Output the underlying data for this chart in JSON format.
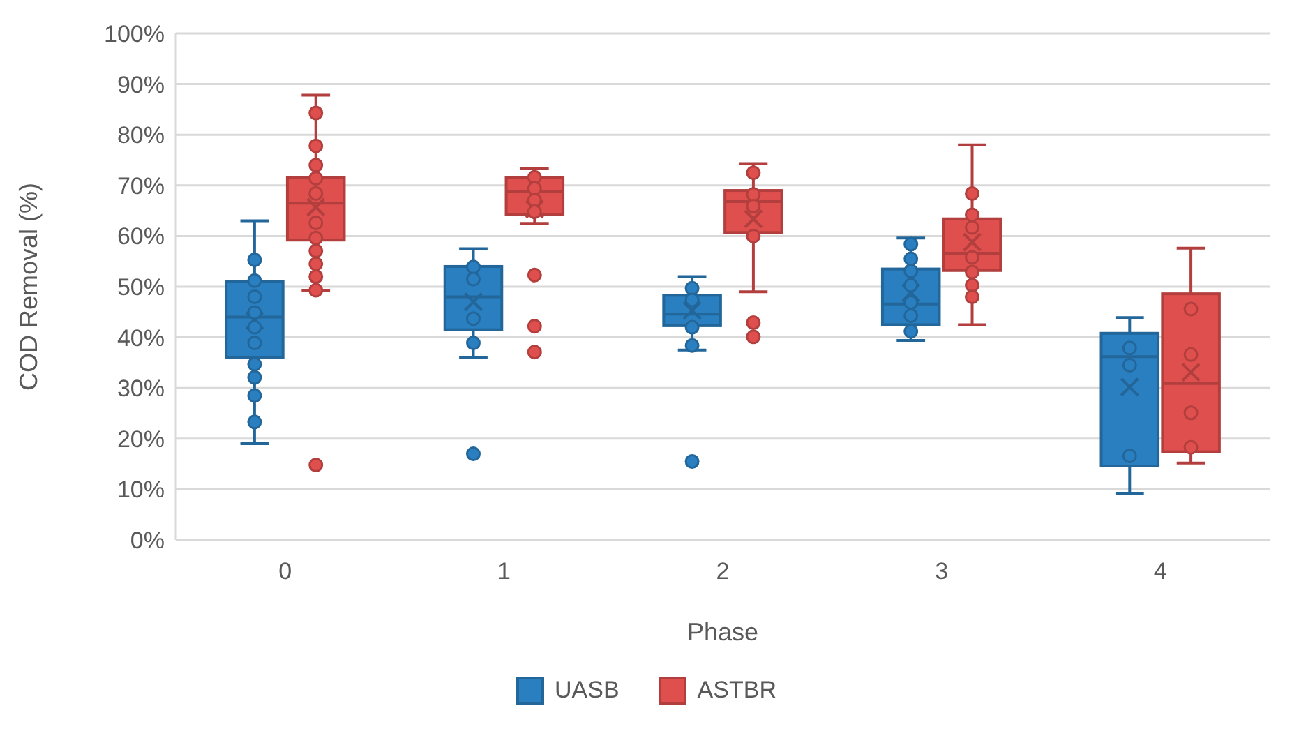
{
  "chart_data": {
    "type": "box",
    "xlabel": "Phase",
    "ylabel": "COD Removal (%)",
    "categories": [
      "0",
      "1",
      "2",
      "3",
      "4"
    ],
    "ylim": [
      0,
      100
    ],
    "yticks": [
      {
        "value": 0,
        "label": "0%"
      },
      {
        "value": 10,
        "label": "10%"
      },
      {
        "value": 20,
        "label": "20%"
      },
      {
        "value": 30,
        "label": "30%"
      },
      {
        "value": 40,
        "label": "40%"
      },
      {
        "value": 50,
        "label": "50%"
      },
      {
        "value": 60,
        "label": "60%"
      },
      {
        "value": 70,
        "label": "70%"
      },
      {
        "value": 80,
        "label": "80%"
      },
      {
        "value": 90,
        "label": "90%"
      },
      {
        "value": 100,
        "label": "100%"
      }
    ],
    "grid": "y",
    "legend": "bottom",
    "marker": "circle",
    "series": [
      {
        "name": "UASB",
        "color": "#2a7fc1",
        "type": "box",
        "boxes": [
          {
            "low": 19,
            "q1": 36,
            "median": 44,
            "q3": 51,
            "high": 63,
            "mean": 43.3
          },
          {
            "low": 36,
            "q1": 41.5,
            "median": 48,
            "q3": 54,
            "high": 57.5,
            "mean": 47,
            "outliers": [
              17
            ]
          },
          {
            "low": 37.5,
            "q1": 42.3,
            "median": 44.6,
            "q3": 48.3,
            "high": 52,
            "mean": 45.3,
            "outliers": [
              15.5
            ]
          },
          {
            "low": 39.4,
            "q1": 42.5,
            "median": 46.6,
            "q3": 53.5,
            "high": 59.6,
            "mean": 48.8
          },
          {
            "low": 9.2,
            "q1": 14.6,
            "median": 36.2,
            "q3": 40.8,
            "high": 43.9,
            "mean": 30.2
          }
        ]
      },
      {
        "name": "ASTBR",
        "color": "#df4f4d",
        "type": "box",
        "boxes": [
          {
            "low": 49.3,
            "q1": 59.2,
            "median": 66.5,
            "q3": 71.6,
            "high": 87.8,
            "mean": 65.7,
            "outliers": [
              14.8
            ]
          },
          {
            "low": 62.5,
            "q1": 64.2,
            "median": 68.8,
            "q3": 71.6,
            "high": 73.3,
            "mean": 65.3,
            "outliers": [
              52.3,
              42.2,
              37.1
            ]
          },
          {
            "low": 49,
            "q1": 60.7,
            "median": 66.8,
            "q3": 69,
            "high": 74.3,
            "mean": 63.4,
            "outliers": [
              42.9,
              40.1
            ]
          },
          {
            "low": 42.5,
            "q1": 53.2,
            "median": 56.6,
            "q3": 63.4,
            "high": 78,
            "mean": 58.8
          },
          {
            "low": 15.2,
            "q1": 17.4,
            "median": 30.9,
            "q3": 48.6,
            "high": 57.6,
            "mean": 33.1
          }
        ]
      },
      {
        "type": "scatter",
        "color": "#2a7fc1",
        "x": [
          "0",
          "0",
          "0",
          "0",
          "0",
          "0",
          "0",
          "0",
          "0",
          "0",
          "1",
          "1",
          "1",
          "1",
          "2",
          "2",
          "2",
          "2",
          "3",
          "3",
          "3",
          "3",
          "3",
          "3",
          "3",
          "4",
          "4",
          "4"
        ],
        "values": [
          55.3,
          51.2,
          48,
          44.9,
          42,
          38.9,
          34.7,
          32.1,
          28.5,
          23.3,
          53.9,
          51.5,
          43.7,
          38.9,
          49.7,
          47.4,
          42,
          38.4,
          58.4,
          55.5,
          53.1,
          50.3,
          46.9,
          44.3,
          41.2,
          37.9,
          34.5,
          16.6
        ]
      },
      {
        "type": "scatter",
        "color": "#df4f4d",
        "x": [
          "0",
          "0",
          "0",
          "0",
          "0",
          "0",
          "0",
          "0",
          "0",
          "0",
          "0",
          "1",
          "1",
          "1",
          "1",
          "2",
          "2",
          "2",
          "2",
          "3",
          "3",
          "3",
          "3",
          "3",
          "3",
          "3",
          "4",
          "4",
          "4",
          "4"
        ],
        "values": [
          84.3,
          77.8,
          74,
          71.4,
          68.4,
          62.6,
          59.6,
          57.1,
          54.5,
          52,
          49.3,
          71.6,
          69.4,
          67.1,
          64.8,
          72.5,
          68.2,
          65.9,
          60,
          68.4,
          64.2,
          61.7,
          55.8,
          52.9,
          50.3,
          48,
          45.6,
          36.6,
          25.1,
          18.3
        ]
      }
    ]
  }
}
